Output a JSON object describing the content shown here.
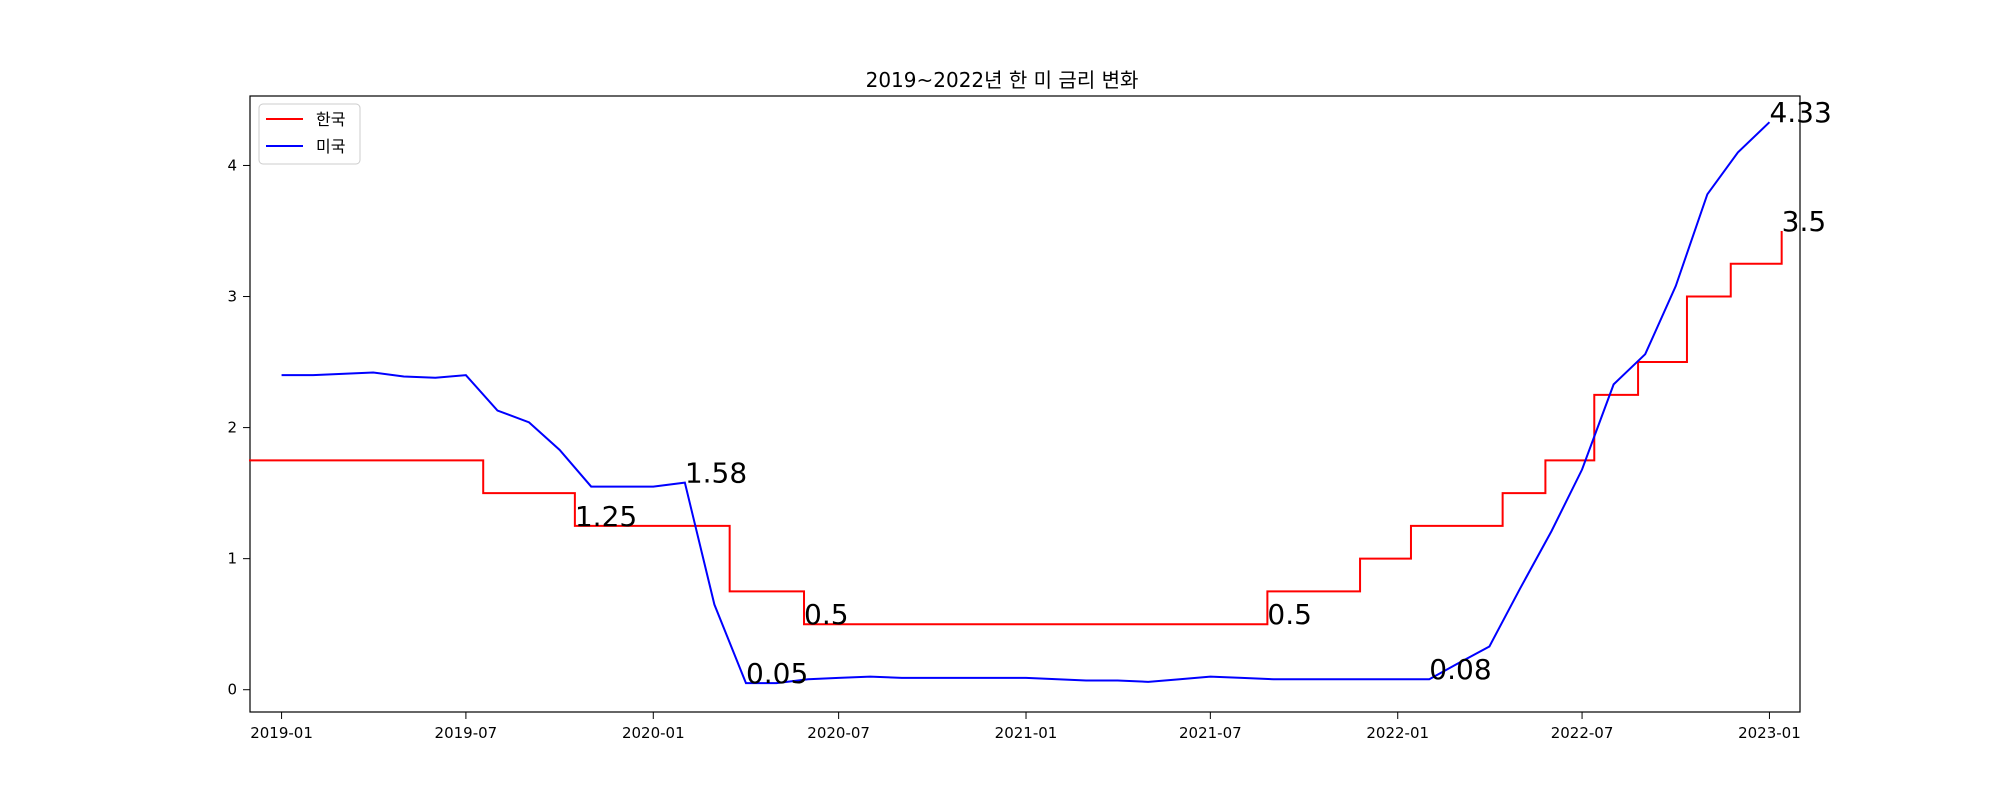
{
  "chart_data": {
    "type": "line",
    "title": "2019~2022년 한 미 금리 변화",
    "xlabel": "",
    "ylabel": "",
    "x_range": [
      "2018-12-01",
      "2023-01-31"
    ],
    "ylim": [
      -0.17,
      4.53
    ],
    "y_ticks": [
      0,
      1,
      2,
      3,
      4
    ],
    "x_ticks": [
      "2019-01",
      "2019-07",
      "2020-01",
      "2020-07",
      "2021-01",
      "2021-07",
      "2022-01",
      "2022-07",
      "2023-01"
    ],
    "grid": false,
    "legend": "top-left",
    "series": [
      {
        "name": "한국",
        "color": "#ff0000",
        "step": true,
        "points": [
          [
            "2018-11-30",
            1.75
          ],
          [
            "2019-07-18",
            1.5
          ],
          [
            "2019-10-16",
            1.25
          ],
          [
            "2020-03-16",
            0.75
          ],
          [
            "2020-05-28",
            0.5
          ],
          [
            "2021-08-26",
            0.75
          ],
          [
            "2021-11-25",
            1.0
          ],
          [
            "2022-01-14",
            1.25
          ],
          [
            "2022-04-14",
            1.5
          ],
          [
            "2022-05-26",
            1.75
          ],
          [
            "2022-07-13",
            2.25
          ],
          [
            "2022-08-25",
            2.5
          ],
          [
            "2022-10-12",
            3.0
          ],
          [
            "2022-11-24",
            3.25
          ],
          [
            "2023-01-13",
            3.5
          ]
        ]
      },
      {
        "name": "미국",
        "color": "#0000ff",
        "step": false,
        "points": [
          [
            "2019-01-01",
            2.4
          ],
          [
            "2019-02-01",
            2.4
          ],
          [
            "2019-03-01",
            2.41
          ],
          [
            "2019-04-01",
            2.42
          ],
          [
            "2019-05-01",
            2.39
          ],
          [
            "2019-06-01",
            2.38
          ],
          [
            "2019-07-01",
            2.4
          ],
          [
            "2019-08-01",
            2.13
          ],
          [
            "2019-09-01",
            2.04
          ],
          [
            "2019-10-01",
            1.83
          ],
          [
            "2019-11-01",
            1.55
          ],
          [
            "2019-12-01",
            1.55
          ],
          [
            "2020-01-01",
            1.55
          ],
          [
            "2020-02-01",
            1.58
          ],
          [
            "2020-03-01",
            0.65
          ],
          [
            "2020-04-01",
            0.05
          ],
          [
            "2020-05-01",
            0.05
          ],
          [
            "2020-06-01",
            0.08
          ],
          [
            "2020-07-01",
            0.09
          ],
          [
            "2020-08-01",
            0.1
          ],
          [
            "2020-09-01",
            0.09
          ],
          [
            "2020-10-01",
            0.09
          ],
          [
            "2020-11-01",
            0.09
          ],
          [
            "2020-12-01",
            0.09
          ],
          [
            "2021-01-01",
            0.09
          ],
          [
            "2021-02-01",
            0.08
          ],
          [
            "2021-03-01",
            0.07
          ],
          [
            "2021-04-01",
            0.07
          ],
          [
            "2021-05-01",
            0.06
          ],
          [
            "2021-06-01",
            0.08
          ],
          [
            "2021-07-01",
            0.1
          ],
          [
            "2021-08-01",
            0.09
          ],
          [
            "2021-09-01",
            0.08
          ],
          [
            "2021-10-01",
            0.08
          ],
          [
            "2021-11-01",
            0.08
          ],
          [
            "2021-12-01",
            0.08
          ],
          [
            "2022-01-01",
            0.08
          ],
          [
            "2022-02-01",
            0.08
          ],
          [
            "2022-03-01",
            0.2
          ],
          [
            "2022-04-01",
            0.33
          ],
          [
            "2022-05-01",
            0.77
          ],
          [
            "2022-06-01",
            1.21
          ],
          [
            "2022-07-01",
            1.68
          ],
          [
            "2022-08-01",
            2.33
          ],
          [
            "2022-09-01",
            2.56
          ],
          [
            "2022-10-01",
            3.08
          ],
          [
            "2022-11-01",
            3.78
          ],
          [
            "2022-12-01",
            4.1
          ],
          [
            "2023-01-01",
            4.33
          ]
        ]
      }
    ],
    "annotations": [
      {
        "text": "1.58",
        "x": "2020-02-01",
        "y": 1.58
      },
      {
        "text": "1.25",
        "x": "2019-10-16",
        "y": 1.25
      },
      {
        "text": "0.05",
        "x": "2020-04-01",
        "y": 0.05
      },
      {
        "text": "0.5",
        "x": "2020-05-28",
        "y": 0.5
      },
      {
        "text": "0.5",
        "x": "2021-08-26",
        "y": 0.5
      },
      {
        "text": "0.08",
        "x": "2022-02-01",
        "y": 0.08
      },
      {
        "text": "4.33",
        "x": "2023-01-01",
        "y": 4.33
      },
      {
        "text": "3.5",
        "x": "2023-01-13",
        "y": 3.5
      }
    ]
  }
}
